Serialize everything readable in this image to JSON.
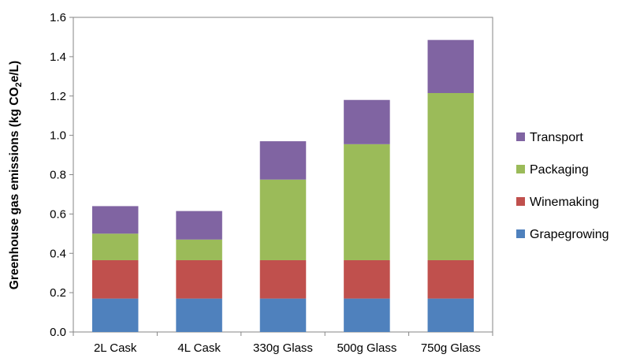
{
  "chart_data": {
    "type": "bar",
    "stacked": true,
    "categories": [
      "2L Cask",
      "4L Cask",
      "330g Glass",
      "500g Glass",
      "750g Glass"
    ],
    "series": [
      {
        "name": "Grapegrowing",
        "color": "#4F81BD",
        "values": [
          0.17,
          0.17,
          0.17,
          0.17,
          0.17
        ]
      },
      {
        "name": "Winemaking",
        "color": "#C0504D",
        "values": [
          0.195,
          0.195,
          0.195,
          0.195,
          0.195
        ]
      },
      {
        "name": "Packaging",
        "color": "#9BBB59",
        "values": [
          0.135,
          0.105,
          0.41,
          0.59,
          0.85
        ]
      },
      {
        "name": "Transport",
        "color": "#8064A2",
        "values": [
          0.14,
          0.145,
          0.195,
          0.225,
          0.27
        ]
      }
    ],
    "ylabel_main": "Greenhouse gas emissions (kg CO",
    "ylabel_sub": "2",
    "ylabel_tail": "e/L)",
    "ylim": [
      0,
      1.6
    ],
    "yticks": [
      "0.0",
      "0.2",
      "0.4",
      "0.6",
      "0.8",
      "1.0",
      "1.2",
      "1.4",
      "1.6"
    ],
    "legend_position": "right",
    "legend_order": [
      "Transport",
      "Packaging",
      "Winemaking",
      "Grapegrowing"
    ],
    "grid": false
  }
}
